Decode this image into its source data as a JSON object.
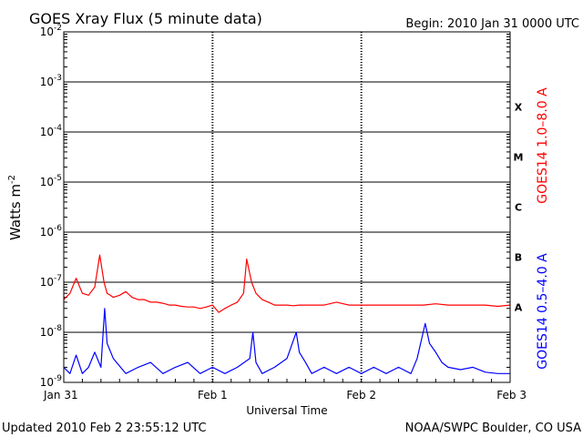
{
  "chart_data": {
    "type": "line",
    "title": "GOES Xray Flux (5 minute data)",
    "begin_label": "Begin:  2010 Jan 31 0000 UTC",
    "ylabel": "Watts m",
    "ylabel_exp": "-2",
    "xlabel": "Universal Time",
    "y_scale": "log",
    "ylim": [
      1e-09,
      0.01
    ],
    "y_ticks": [
      {
        "value": 0.01,
        "exp": "-2"
      },
      {
        "value": 0.001,
        "exp": "-3"
      },
      {
        "value": 0.0001,
        "exp": "-4"
      },
      {
        "value": 1e-05,
        "exp": "-5"
      },
      {
        "value": 1e-06,
        "exp": "-6"
      },
      {
        "value": 1e-07,
        "exp": "-7"
      },
      {
        "value": 1e-08,
        "exp": "-8"
      },
      {
        "value": 1e-09,
        "exp": "-9"
      }
    ],
    "x_unit": "hours since 2010 Jan 31 0000 UTC",
    "xlim": [
      0,
      72
    ],
    "x_ticks": [
      {
        "value": 0,
        "label": "Jan 31"
      },
      {
        "value": 24,
        "label": "Feb 1"
      },
      {
        "value": 48,
        "label": "Feb 2"
      },
      {
        "value": 72,
        "label": "Feb 3"
      }
    ],
    "grid": true,
    "flare_classes": [
      {
        "label": "X",
        "value": 0.0001
      },
      {
        "label": "M",
        "value": 1e-05
      },
      {
        "label": "C",
        "value": 1e-06
      },
      {
        "label": "B",
        "value": 1e-07
      },
      {
        "label": "A",
        "value": 1e-08
      }
    ],
    "series": [
      {
        "name": "GOES14 1.0–8.0 A",
        "color": "#ff0000",
        "x": [
          0,
          1,
          2,
          3,
          4,
          5,
          5.8,
          6.5,
          7,
          7.5,
          8,
          9,
          10,
          11,
          12,
          13,
          14,
          15,
          16,
          17,
          18,
          19,
          20,
          21,
          22,
          23,
          24,
          25,
          26,
          27,
          28,
          29,
          29.5,
          30.3,
          31,
          32,
          33,
          34,
          35,
          36,
          37,
          38,
          40,
          42,
          44,
          46,
          48,
          50,
          52,
          54,
          56,
          58,
          60,
          62,
          64,
          66,
          68,
          70,
          72
        ],
        "values": [
          4.5e-08,
          6e-08,
          1.2e-07,
          6e-08,
          5.5e-08,
          8e-08,
          3.5e-07,
          1e-07,
          6e-08,
          5.5e-08,
          5e-08,
          5.5e-08,
          6.5e-08,
          5e-08,
          4.5e-08,
          4.5e-08,
          4e-08,
          4e-08,
          3.8e-08,
          3.5e-08,
          3.5e-08,
          3.3e-08,
          3.2e-08,
          3.2e-08,
          3e-08,
          3.2e-08,
          3.5e-08,
          2.5e-08,
          3e-08,
          3.5e-08,
          4e-08,
          6e-08,
          2.9e-07,
          1e-07,
          6e-08,
          4.5e-08,
          4e-08,
          3.5e-08,
          3.5e-08,
          3.5e-08,
          3.4e-08,
          3.5e-08,
          3.5e-08,
          3.5e-08,
          4e-08,
          3.5e-08,
          3.5e-08,
          3.5e-08,
          3.5e-08,
          3.5e-08,
          3.5e-08,
          3.5e-08,
          3.7e-08,
          3.5e-08,
          3.5e-08,
          3.5e-08,
          3.5e-08,
          3.3e-08,
          3.5e-08
        ]
      },
      {
        "name": "GOES14 0.5–4.0 A",
        "color": "#0000ff",
        "x": [
          0,
          1,
          2,
          3,
          4,
          5,
          6,
          6.6,
          7,
          8,
          10,
          12,
          14,
          16,
          18,
          20,
          22,
          24,
          26,
          28,
          30,
          30.5,
          31,
          32,
          34,
          36,
          37.5,
          38,
          39,
          40,
          42,
          44,
          46,
          48,
          50,
          52,
          54,
          56,
          57,
          58.3,
          59,
          60,
          61,
          62,
          64,
          66,
          68,
          70,
          72
        ],
        "values": [
          2e-09,
          1.5e-09,
          3.5e-09,
          1.5e-09,
          2e-09,
          4e-09,
          2e-09,
          3e-08,
          6e-09,
          3e-09,
          1.5e-09,
          2e-09,
          2.5e-09,
          1.5e-09,
          2e-09,
          2.5e-09,
          1.5e-09,
          2e-09,
          1.5e-09,
          2e-09,
          3e-09,
          1e-08,
          2.5e-09,
          1.5e-09,
          2e-09,
          3e-09,
          1e-08,
          4e-09,
          2.5e-09,
          1.5e-09,
          2e-09,
          1.5e-09,
          2e-09,
          1.5e-09,
          2e-09,
          1.5e-09,
          2e-09,
          1.5e-09,
          3e-09,
          1.5e-08,
          6e-09,
          4e-09,
          2.5e-09,
          2e-09,
          1.8e-09,
          2e-09,
          1.6e-09,
          1.5e-09,
          1.5e-09
        ]
      }
    ]
  },
  "footer": {
    "updated": "Updated 2010 Feb  2 23:55:12 UTC",
    "credit": "NOAA/SWPC Boulder, CO USA"
  }
}
